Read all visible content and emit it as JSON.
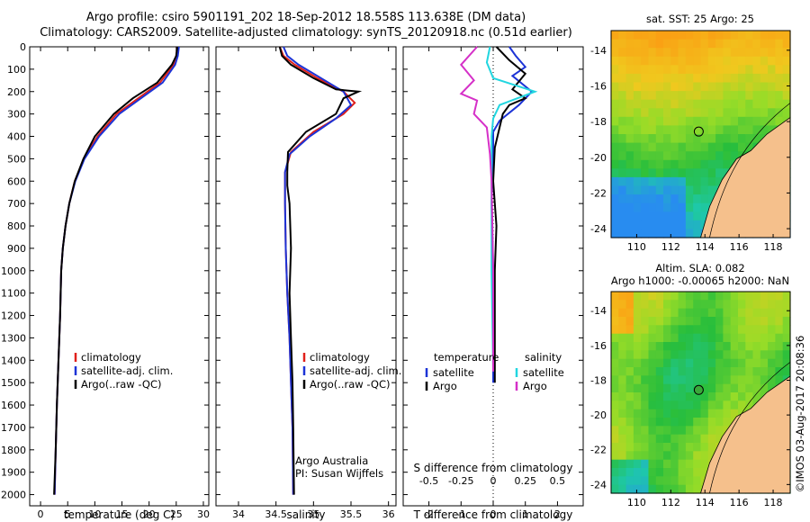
{
  "header": {
    "line1": "Argo profile: csiro 5901191_202 18-Sep-2012 18.558S 113.638E (DM data)",
    "line2": "Climatology: CARS2009. Satellite-adjusted climatology: synTS_20120918.nc (0.51d earlier)"
  },
  "colors": {
    "climatology": "#e0201a",
    "satellite": "#1c33d6",
    "argo": "#000000",
    "argo_salinity_diff": "#d530c8",
    "satellite_salinity_diff": "#22d6e0",
    "land": "#f5c08c"
  },
  "chart_data": [
    {
      "type": "line",
      "xlabel": "temperature (deg C)",
      "xlim": [
        -2,
        31
      ],
      "ylim": [
        0,
        2050
      ],
      "xticks": [
        "0",
        "5",
        "10",
        "15",
        "20",
        "25",
        "30"
      ],
      "yticks": [
        "0",
        "100",
        "200",
        "300",
        "400",
        "500",
        "600",
        "700",
        "800",
        "900",
        "1000",
        "1100",
        "1200",
        "1300",
        "1400",
        "1500",
        "1600",
        "1700",
        "1800",
        "1900",
        "2000"
      ],
      "legend": [
        "climatology",
        "satellite-adj. clim.",
        "Argo(..raw -QC)"
      ],
      "series": [
        {
          "name": "climatology",
          "color": "#e0201a",
          "points": [
            [
              25.2,
              0
            ],
            [
              25,
              40
            ],
            [
              24.5,
              80
            ],
            [
              22,
              160
            ],
            [
              18,
              230
            ],
            [
              14,
              300
            ],
            [
              10.5,
              400
            ],
            [
              8,
              500
            ],
            [
              6.3,
              600
            ],
            [
              5.3,
              700
            ],
            [
              4.6,
              800
            ],
            [
              4.1,
              900
            ],
            [
              3.8,
              1000
            ],
            [
              3.6,
              1200
            ],
            [
              3.3,
              1400
            ],
            [
              3,
              1600
            ],
            [
              2.8,
              1800
            ],
            [
              2.6,
              2000
            ]
          ]
        },
        {
          "name": "satellite-adj. clim.",
          "color": "#1c33d6",
          "points": [
            [
              25.5,
              0
            ],
            [
              25.3,
              40
            ],
            [
              24.8,
              80
            ],
            [
              22.5,
              160
            ],
            [
              18.5,
              230
            ],
            [
              14.5,
              300
            ],
            [
              10.8,
              400
            ],
            [
              8.1,
              500
            ],
            [
              6.4,
              600
            ],
            [
              5.3,
              700
            ],
            [
              4.6,
              800
            ],
            [
              4.1,
              900
            ],
            [
              3.8,
              1000
            ],
            [
              3.6,
              1200
            ],
            [
              3.3,
              1400
            ],
            [
              3,
              1600
            ],
            [
              2.8,
              1800
            ],
            [
              2.6,
              2000
            ]
          ]
        },
        {
          "name": "Argo(..raw -QC)",
          "color": "#000000",
          "points": [
            [
              25.2,
              0
            ],
            [
              25,
              40
            ],
            [
              24.2,
              80
            ],
            [
              21.5,
              160
            ],
            [
              17,
              230
            ],
            [
              13.5,
              300
            ],
            [
              10,
              400
            ],
            [
              7.9,
              500
            ],
            [
              6.3,
              600
            ],
            [
              5.3,
              700
            ],
            [
              4.6,
              800
            ],
            [
              4.1,
              900
            ],
            [
              3.8,
              1000
            ],
            [
              3.6,
              1200
            ],
            [
              3.3,
              1400
            ],
            [
              3,
              1600
            ],
            [
              2.8,
              1800
            ],
            [
              2.5,
              2000
            ]
          ]
        }
      ]
    },
    {
      "type": "line",
      "xlabel": "salinity",
      "xlim": [
        33.7,
        36.1
      ],
      "ylim": [
        0,
        2050
      ],
      "xticks": [
        "34",
        "34.5",
        "35",
        "35.5",
        "36"
      ],
      "legend": [
        "climatology",
        "satellite-adj. clim.",
        "Argo(..raw -QC)"
      ],
      "notes": [
        "Argo Australia",
        "PI: Susan Wijffels"
      ],
      "series": [
        {
          "name": "climatology",
          "color": "#e0201a",
          "points": [
            [
              34.55,
              0
            ],
            [
              34.6,
              40
            ],
            [
              34.75,
              80
            ],
            [
              35.05,
              140
            ],
            [
              35.4,
              200
            ],
            [
              35.55,
              250
            ],
            [
              35.4,
              300
            ],
            [
              35.0,
              380
            ],
            [
              34.7,
              470
            ],
            [
              34.62,
              560
            ],
            [
              34.62,
              700
            ],
            [
              34.63,
              900
            ],
            [
              34.65,
              1100
            ],
            [
              34.68,
              1300
            ],
            [
              34.7,
              1500
            ],
            [
              34.72,
              1700
            ],
            [
              34.73,
              2000
            ]
          ]
        },
        {
          "name": "satellite-adj. clim.",
          "color": "#1c33d6",
          "points": [
            [
              34.6,
              0
            ],
            [
              34.65,
              40
            ],
            [
              34.8,
              80
            ],
            [
              35.1,
              140
            ],
            [
              35.4,
              200
            ],
            [
              35.5,
              260
            ],
            [
              35.3,
              320
            ],
            [
              34.95,
              400
            ],
            [
              34.68,
              480
            ],
            [
              34.62,
              560
            ],
            [
              34.62,
              700
            ],
            [
              34.63,
              900
            ],
            [
              34.65,
              1100
            ],
            [
              34.68,
              1300
            ],
            [
              34.7,
              1500
            ],
            [
              34.72,
              1700
            ],
            [
              34.73,
              2000
            ]
          ]
        },
        {
          "name": "Argo(..raw -QC)",
          "color": "#000000",
          "points": [
            [
              34.55,
              0
            ],
            [
              34.58,
              40
            ],
            [
              34.7,
              80
            ],
            [
              35.0,
              140
            ],
            [
              35.3,
              190
            ],
            [
              35.6,
              200
            ],
            [
              35.4,
              230
            ],
            [
              35.3,
              300
            ],
            [
              34.9,
              380
            ],
            [
              34.66,
              470
            ],
            [
              34.65,
              560
            ],
            [
              34.65,
              620
            ],
            [
              34.68,
              700
            ],
            [
              34.7,
              900
            ],
            [
              34.68,
              1100
            ],
            [
              34.7,
              1300
            ],
            [
              34.72,
              1500
            ],
            [
              34.73,
              1700
            ],
            [
              34.74,
              2000
            ]
          ]
        }
      ]
    },
    {
      "type": "line",
      "xlabel": "T difference from climatology",
      "xlabel2": "S difference from climatology",
      "xlim": [
        -2.8,
        2.8
      ],
      "ylim": [
        0,
        2050
      ],
      "xticks": [
        "-2",
        "-1",
        "0",
        "1",
        "2"
      ],
      "xticks2": [
        "-0.5",
        "-0.25",
        "0",
        "0.25",
        "0.5"
      ],
      "legend_left_title": "temperature",
      "legend_right_title": "salinity",
      "legend": [
        "satellite",
        "Argo",
        "satellite",
        "Argo"
      ],
      "series": [
        {
          "name": "satellite",
          "color": "#1c33d6",
          "points": [
            [
              0.5,
              0
            ],
            [
              0.7,
              40
            ],
            [
              1,
              90
            ],
            [
              0.6,
              130
            ],
            [
              1.2,
              200
            ],
            [
              0.8,
              260
            ],
            [
              0.2,
              330
            ],
            [
              0,
              380
            ],
            [
              0,
              500
            ],
            [
              -0.05,
              700
            ],
            [
              0,
              1000
            ],
            [
              0,
              1500
            ]
          ]
        },
        {
          "name": "Argo",
          "color": "#000000",
          "points": [
            [
              0.1,
              0
            ],
            [
              0.5,
              60
            ],
            [
              1.0,
              120
            ],
            [
              0.6,
              190
            ],
            [
              1.0,
              230
            ],
            [
              0.5,
              260
            ],
            [
              0.3,
              300
            ],
            [
              0.2,
              360
            ],
            [
              0.05,
              450
            ],
            [
              0,
              600
            ],
            [
              0.1,
              800
            ],
            [
              0.05,
              1000
            ],
            [
              0.05,
              1500
            ]
          ]
        },
        {
          "name": "satellite",
          "color": "#22d6e0",
          "points": [
            [
              -0.1,
              0
            ],
            [
              -0.2,
              70
            ],
            [
              0,
              140
            ],
            [
              1.3,
              200
            ],
            [
              0.2,
              260
            ],
            [
              0,
              320
            ],
            [
              -0.05,
              400
            ],
            [
              -0.05,
              600
            ],
            [
              -0.05,
              1000
            ],
            [
              0,
              1450
            ]
          ]
        },
        {
          "name": "Argo",
          "color": "#d530c8",
          "points": [
            [
              -0.5,
              0
            ],
            [
              -1.0,
              80
            ],
            [
              -0.6,
              150
            ],
            [
              -1.0,
              210
            ],
            [
              -0.5,
              240
            ],
            [
              -0.6,
              300
            ],
            [
              -0.2,
              360
            ],
            [
              -0.1,
              480
            ],
            [
              -0.05,
              600
            ],
            [
              0,
              1000
            ],
            [
              0,
              1450
            ]
          ]
        }
      ]
    }
  ],
  "maps": [
    {
      "title": "sat. SST: 25 Argo: 25",
      "xticks": [
        "110",
        "112",
        "114",
        "116",
        "118"
      ],
      "yticks": [
        "-14",
        "-16",
        "-18",
        "-20",
        "-22",
        "-24"
      ]
    },
    {
      "title_line1": "Altim. SLA: 0.082",
      "title_line2": "Argo h1000: -0.00065 h2000: NaN",
      "xticks": [
        "110",
        "112",
        "114",
        "116",
        "118"
      ],
      "yticks": [
        "-14",
        "-16",
        "-18",
        "-20",
        "-22",
        "-24"
      ]
    }
  ],
  "watermark": "©IMOS 03-Aug-2017 20:08:36"
}
